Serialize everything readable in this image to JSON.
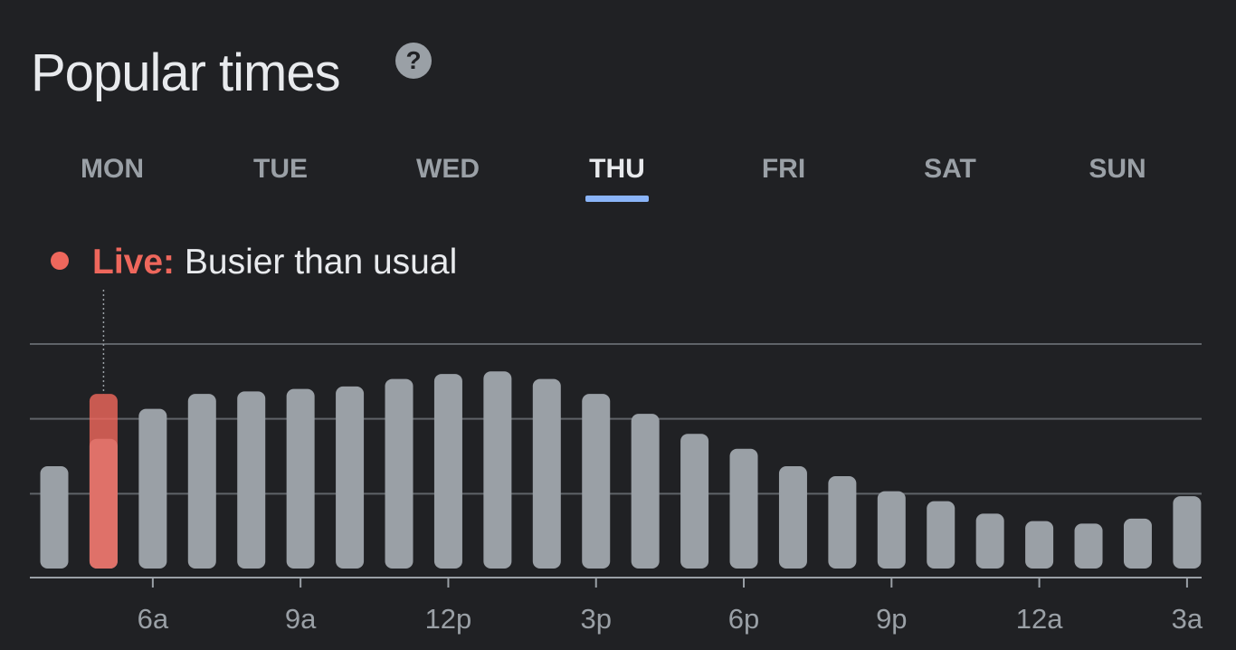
{
  "header": {
    "title": "Popular times",
    "help_icon": "help-circle-icon"
  },
  "days": [
    "MON",
    "TUE",
    "WED",
    "THU",
    "FRI",
    "SAT",
    "SUN"
  ],
  "selected_day": "THU",
  "live": {
    "label": "Live:",
    "status": "Busier than usual"
  },
  "colors": {
    "background": "#202124",
    "bar": "#9aa0a6",
    "live_bar": "#ee675c",
    "accent": "#8ab4f8",
    "gridline": "#5f6368"
  },
  "chart_data": {
    "type": "bar",
    "x_hours": [
      4,
      5,
      6,
      7,
      8,
      9,
      10,
      11,
      12,
      13,
      14,
      15,
      16,
      17,
      18,
      19,
      20,
      21,
      22,
      23,
      24,
      25,
      26,
      27
    ],
    "values": [
      41,
      52,
      64,
      70,
      71,
      72,
      73,
      76,
      78,
      79,
      76,
      70,
      62,
      54,
      48,
      41,
      37,
      31,
      27,
      22,
      19,
      18,
      20,
      29
    ],
    "live_hour": 5,
    "live_value": 70,
    "x_tick_labels": [
      "6a",
      "9a",
      "12p",
      "3p",
      "6p",
      "9p",
      "12a",
      "3a"
    ],
    "x_tick_hours": [
      6,
      9,
      12,
      15,
      18,
      21,
      24,
      27
    ],
    "ylim": [
      0,
      90
    ],
    "gridlines": [
      30,
      60,
      90
    ],
    "grid": true
  }
}
